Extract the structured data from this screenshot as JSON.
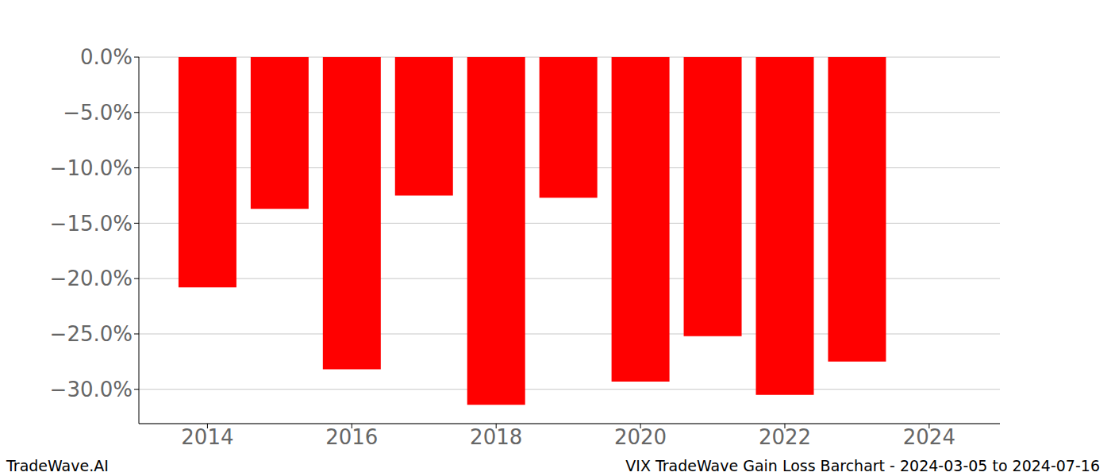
{
  "chart_data": {
    "type": "bar",
    "title": "VIX TradeWave Gain Loss Barchart - 2024-03-05 to 2024-07-16",
    "annotations": [
      "TradeWave.AI"
    ],
    "x": [
      2014,
      2015,
      2016,
      2017,
      2018,
      2019,
      2020,
      2021,
      2022,
      2023
    ],
    "values": [
      -20.8,
      -13.7,
      -28.2,
      -12.5,
      -31.4,
      -12.7,
      -29.3,
      -25.2,
      -30.5,
      -27.5
    ],
    "color": "#ff0000",
    "xlim": [
      2013.05,
      2024.98
    ],
    "xticks": [
      2014,
      2016,
      2018,
      2020,
      2022,
      2024
    ],
    "ylim": [
      -33.1,
      0
    ],
    "yticks": [
      {
        "value": 0,
        "label": "0.0%"
      },
      {
        "value": -5,
        "label": "−5.0%"
      },
      {
        "value": -10,
        "label": "−10.0%"
      },
      {
        "value": -15,
        "label": "−15.0%"
      },
      {
        "value": -20,
        "label": "−20.0%"
      },
      {
        "value": -25,
        "label": "−25.0%"
      },
      {
        "value": -30,
        "label": "−30.0%"
      }
    ],
    "grid": "y"
  }
}
